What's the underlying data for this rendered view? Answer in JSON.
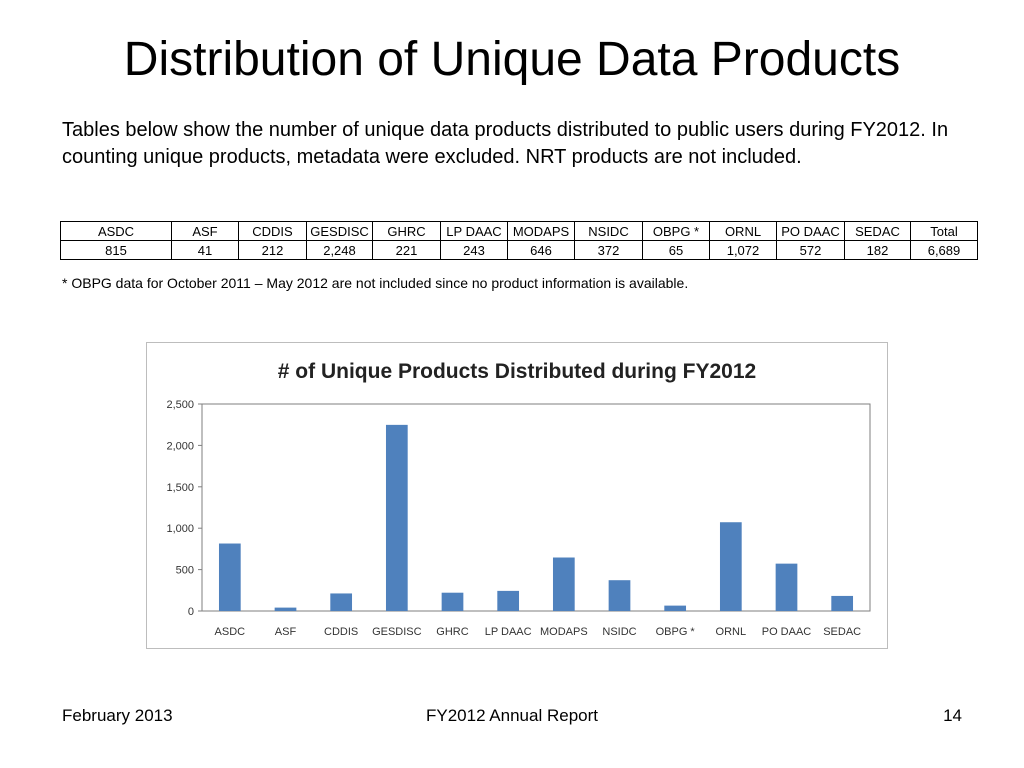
{
  "slide": {
    "title": "Distribution of Unique Data Products",
    "intro": "Tables below show the number of unique data products distributed to public users during FY2012. In counting unique products, metadata were excluded. NRT products are not included.",
    "footnote": "* OBPG data for October 2011 – May 2012 are not included since no product information is available."
  },
  "table": {
    "headers": [
      "ASDC",
      "ASF",
      "CDDIS",
      "GESDISC",
      "GHRC",
      "LP DAAC",
      "MODAPS",
      "NSIDC",
      "OBPG *",
      "ORNL",
      "PO DAAC",
      "SEDAC",
      "Total"
    ],
    "values": [
      "815",
      "41",
      "212",
      "2,248",
      "221",
      "243",
      "646",
      "372",
      "65",
      "1,072",
      "572",
      "182",
      "6,689"
    ]
  },
  "chart_data": {
    "type": "bar",
    "title": "# of Unique Products Distributed during FY2012",
    "categories": [
      "ASDC",
      "ASF",
      "CDDIS",
      "GESDISC",
      "GHRC",
      "LP DAAC",
      "MODAPS",
      "NSIDC",
      "OBPG *",
      "ORNL",
      "PO DAAC",
      "SEDAC"
    ],
    "values": [
      815,
      41,
      212,
      2248,
      221,
      243,
      646,
      372,
      65,
      1072,
      572,
      182
    ],
    "ylim": [
      0,
      2500
    ],
    "yticks": [
      0,
      500,
      1000,
      1500,
      2000,
      2500
    ],
    "ytick_labels": [
      "0",
      "500",
      "1,000",
      "1,500",
      "2,000",
      "2,500"
    ],
    "grid": false,
    "legend": "none",
    "bar_color": "#4f81bd"
  },
  "footer": {
    "date": "February 2013",
    "report": "FY2012 Annual Report",
    "page": "14"
  }
}
